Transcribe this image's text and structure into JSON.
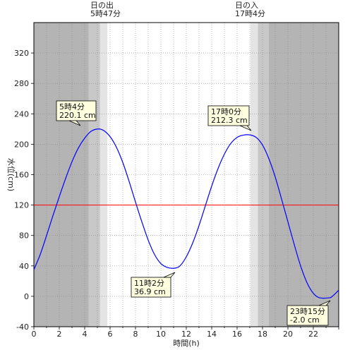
{
  "chart_data": {
    "type": "line",
    "xlabel": "時間(h)",
    "ylabel": "水位(cm)",
    "xlim": [
      0,
      24
    ],
    "ylim": [
      -40,
      360
    ],
    "x_ticks": [
      0,
      2,
      4,
      6,
      8,
      10,
      12,
      14,
      16,
      18,
      20,
      22
    ],
    "x_tick_labels": [
      "0",
      "2",
      "4",
      "6",
      "8",
      "10",
      "12",
      "14",
      "16",
      "18",
      "20",
      "22"
    ],
    "y_ticks": [
      -40,
      0,
      40,
      80,
      120,
      160,
      200,
      240,
      280,
      320
    ],
    "y_tick_labels": [
      "-40",
      "0",
      "40",
      "80",
      "120",
      "160",
      "200",
      "240",
      "280",
      "320"
    ],
    "grid": true,
    "reference_line": {
      "y": 120,
      "color": "#ff0000"
    },
    "series": [
      {
        "color": "#0000ff",
        "x": [
          0,
          0.5,
          1,
          1.5,
          2,
          2.5,
          3,
          3.5,
          4,
          4.5,
          5.07,
          5.5,
          6,
          6.5,
          7,
          7.5,
          8,
          8.5,
          9,
          9.5,
          10,
          10.5,
          11.03,
          11.5,
          12,
          12.5,
          13,
          13.5,
          14,
          14.5,
          15,
          15.5,
          16,
          16.5,
          17.0,
          17.5,
          18,
          18.5,
          19,
          19.5,
          20,
          20.5,
          21,
          21.5,
          22,
          22.5,
          23.25,
          23.5,
          24
        ],
        "y": [
          35,
          55,
          80,
          106,
          131,
          155,
          177,
          195,
          208,
          217,
          220.1,
          218,
          210,
          196,
          176,
          151,
          124,
          98,
          74,
          55,
          43,
          38,
          36.9,
          40,
          52,
          70,
          93,
          119,
          145,
          168,
          187,
          201,
          209,
          212,
          212.3,
          209,
          199,
          181,
          157,
          128,
          98,
          68,
          40,
          18,
          4,
          -2,
          -2.0,
          0,
          8
        ]
      }
    ],
    "extrema": [
      {
        "time": "5時4分",
        "value": "220.1 cm",
        "x": 5.07,
        "y": 220.1
      },
      {
        "time": "11時2分",
        "value": "36.9 cm",
        "x": 11.03,
        "y": 36.9
      },
      {
        "time": "17時0分",
        "value": "212.3 cm",
        "x": 17.0,
        "y": 212.3
      },
      {
        "time": "23時15分",
        "value": "-2.0 cm",
        "x": 23.25,
        "y": -2.0
      }
    ],
    "sunrise": {
      "label": "日の出",
      "time": "5時47分",
      "hour": 5.78
    },
    "sunset": {
      "label": "日の入",
      "time": "17時4分",
      "hour": 17.07
    },
    "twilight_bands_hours": [
      [
        4.3,
        5.2,
        "#c8c8c8"
      ],
      [
        5.2,
        5.78,
        "#e4e4e4"
      ],
      [
        17.07,
        17.65,
        "#e4e4e4"
      ],
      [
        17.65,
        18.5,
        "#c8c8c8"
      ]
    ],
    "night_color": "#b4b4b4",
    "day_color": "#ffffff"
  }
}
